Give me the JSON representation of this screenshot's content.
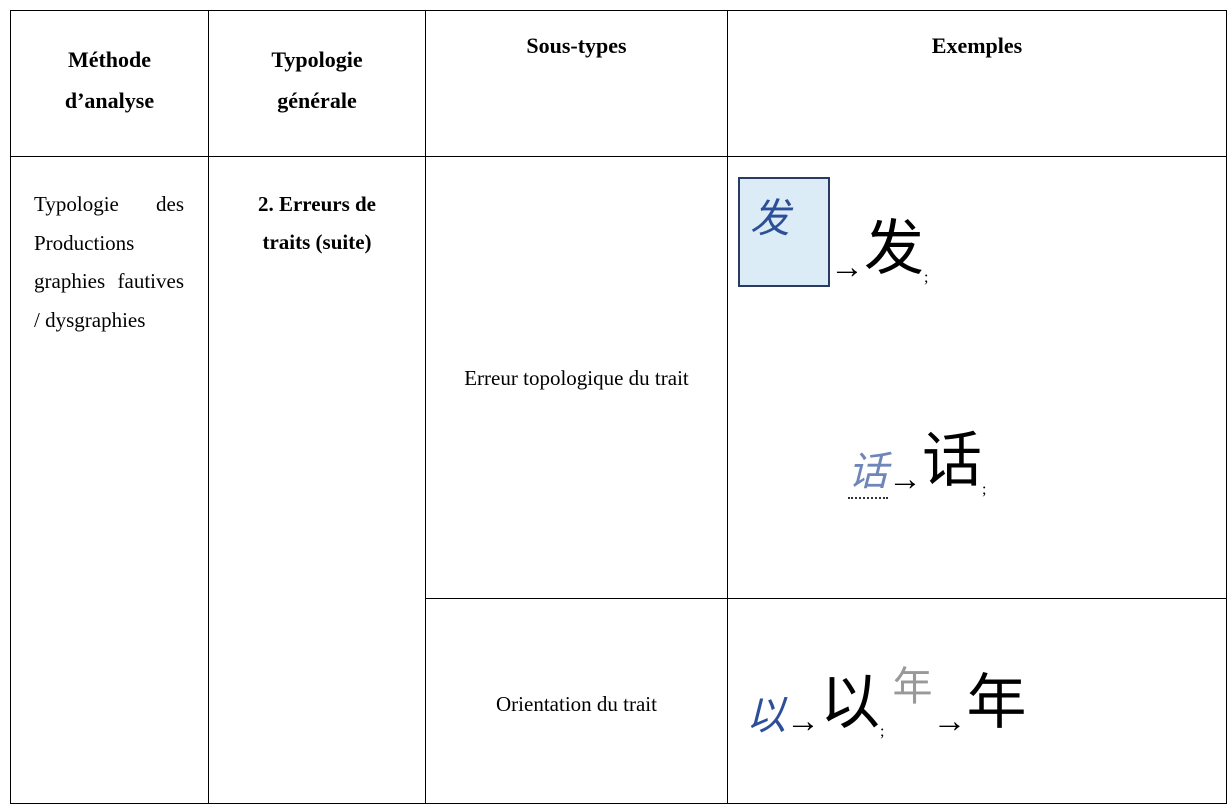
{
  "table": {
    "header": [
      [
        "Méthode",
        "d’analyse"
      ],
      [
        "Typologie",
        "générale"
      ],
      [
        "Sous-types"
      ],
      [
        "Exemples"
      ]
    ],
    "method": "Typologie des Productions graphies fautives / dysgraphies",
    "typology": [
      "2. Erreurs de",
      "traits (suite)"
    ],
    "rows": [
      {
        "subtype": "Erreur topologique du trait",
        "examples": [
          {
            "written": "发",
            "arrow": "→",
            "correct": "发",
            "sep": ";"
          },
          {
            "written": "话",
            "arrow": "→",
            "correct": "话",
            "sep": ";"
          }
        ]
      },
      {
        "subtype": "Orientation du trait",
        "examples": [
          {
            "written": "以",
            "arrow": "→",
            "correct": "以",
            "sep": ";"
          },
          {
            "written": "年",
            "arrow": "→",
            "correct": "年"
          }
        ]
      }
    ]
  }
}
